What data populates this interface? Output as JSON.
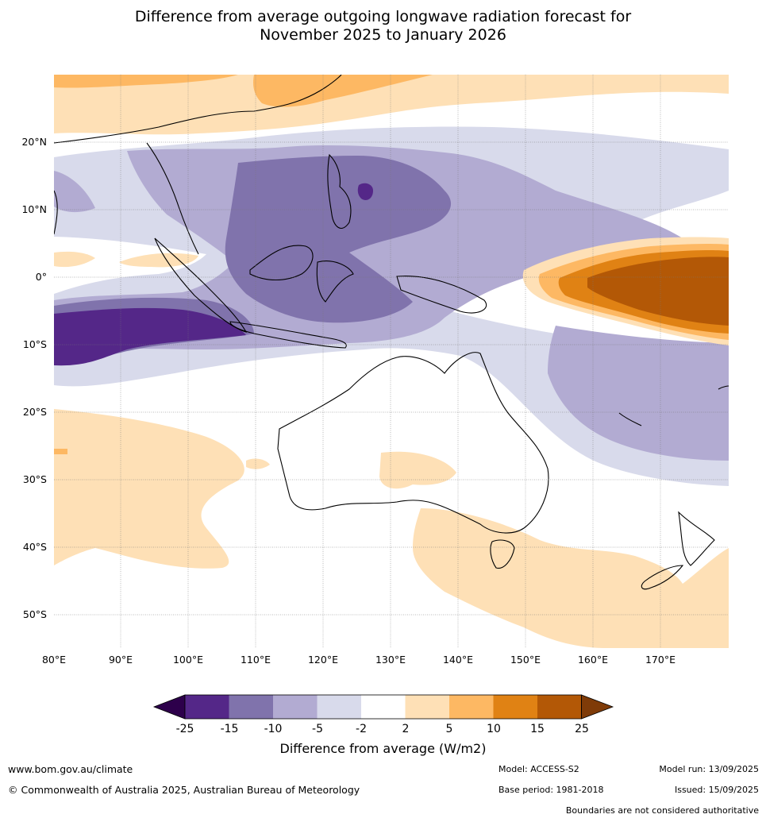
{
  "title": {
    "line1": "Difference from average outgoing longwave radiation forecast for",
    "line2": "November 2025 to January 2026"
  },
  "map": {
    "lon_labels": [
      "80°E",
      "90°E",
      "100°E",
      "110°E",
      "120°E",
      "130°E",
      "140°E",
      "150°E",
      "160°E",
      "170°E"
    ],
    "lat_labels": [
      "20°N",
      "10°N",
      "0°",
      "10°S",
      "20°S",
      "30°S",
      "40°S",
      "50°S"
    ]
  },
  "colorbar": {
    "ticks": [
      "-25",
      "-15",
      "-10",
      "-5",
      "-2",
      "2",
      "5",
      "10",
      "15",
      "25"
    ],
    "colors": [
      "#2d004b",
      "#542788",
      "#8073ac",
      "#b2abd2",
      "#d8daeb",
      "#ffffff",
      "#fee0b6",
      "#fdb863",
      "#e08214",
      "#b35806",
      "#7f3b08"
    ],
    "label": "Difference from average (W/m2)"
  },
  "footer": {
    "website": "www.bom.gov.au/climate",
    "copyright": "© Commonwealth of Australia 2025, Australian Bureau of Meteorology",
    "model": "Model: ACCESS-S2",
    "base_period": "Base period: 1981-2018",
    "model_run": "Model run: 13/09/2025",
    "issued": "Issued: 15/09/2025",
    "disclaimer": "Boundaries are not considered authoritative"
  }
}
